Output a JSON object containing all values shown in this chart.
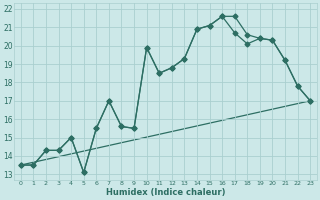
{
  "xlabel": "Humidex (Indice chaleur)",
  "bg_color": "#cce8e8",
  "grid_color": "#aacfcf",
  "line_color": "#2d6e63",
  "xlim": [
    -0.5,
    23.5
  ],
  "ylim": [
    12.7,
    22.3
  ],
  "yticks": [
    13,
    14,
    15,
    16,
    17,
    18,
    19,
    20,
    21,
    22
  ],
  "xticks": [
    0,
    1,
    2,
    3,
    4,
    5,
    6,
    7,
    8,
    9,
    10,
    11,
    12,
    13,
    14,
    15,
    16,
    17,
    18,
    19,
    20,
    21,
    22,
    23
  ],
  "line1_x": [
    0,
    1,
    2,
    3,
    4,
    5,
    6,
    7,
    8,
    9,
    10,
    11,
    12,
    13,
    14,
    15,
    16,
    17,
    18,
    19,
    20,
    21,
    22,
    23
  ],
  "line1_y": [
    13.5,
    13.5,
    14.3,
    14.3,
    15.0,
    13.1,
    15.5,
    17.0,
    15.6,
    15.5,
    19.9,
    18.5,
    18.8,
    19.3,
    20.9,
    21.1,
    21.6,
    21.6,
    20.6,
    20.4,
    20.3,
    19.2,
    17.8,
    17.0
  ],
  "line2_x": [
    0,
    1,
    2,
    3,
    4,
    5,
    6,
    7,
    8,
    9,
    10,
    11,
    12,
    13,
    14,
    15,
    16,
    17,
    18,
    19,
    20,
    21,
    22,
    23
  ],
  "line2_y": [
    13.5,
    13.5,
    14.3,
    14.3,
    15.0,
    13.1,
    15.5,
    17.0,
    15.6,
    15.5,
    19.9,
    18.5,
    18.8,
    19.3,
    20.9,
    21.1,
    21.6,
    20.7,
    20.1,
    20.4,
    20.3,
    19.2,
    17.8,
    17.0
  ],
  "line3_x": [
    0,
    23
  ],
  "line3_y": [
    13.5,
    17.0
  ]
}
